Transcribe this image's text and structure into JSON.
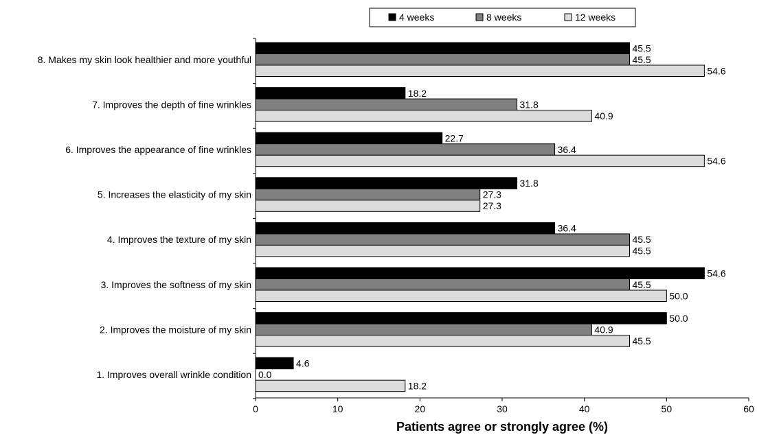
{
  "chart_data": {
    "type": "bar",
    "orientation": "horizontal",
    "categories": [
      "8. Makes my skin look healthier and more youthful",
      "7. Improves the depth of fine wrinkles",
      "6. Improves the appearance of fine wrinkles",
      "5. Increases the elasticity of my skin",
      "4. Improves the texture of my skin",
      "3. Improves the softness of my skin",
      "2. Improves the moisture of my skin",
      "1. Improves overall wrinkle condition"
    ],
    "series": [
      {
        "name": "4 weeks",
        "color": "#000000",
        "values": [
          45.5,
          18.2,
          22.7,
          31.8,
          36.4,
          54.6,
          50.0,
          4.6
        ],
        "labels": [
          "45.5",
          "18.2",
          "22.7",
          "31.8",
          "36.4",
          "54.6",
          "50.0",
          "4.6"
        ]
      },
      {
        "name": "8 weeks",
        "color": "#808080",
        "values": [
          45.5,
          31.8,
          36.4,
          27.3,
          45.5,
          45.5,
          40.9,
          0.0
        ],
        "labels": [
          "45.5",
          "31.8",
          "36.4",
          "27.3",
          "45.5",
          "45.5",
          "40.9",
          "0.0"
        ]
      },
      {
        "name": "12 weeks",
        "color": "#dcdcdc",
        "values": [
          54.6,
          40.9,
          54.6,
          27.3,
          45.5,
          50.0,
          45.5,
          18.2
        ],
        "labels": [
          "54.6",
          "40.9",
          "54.6",
          "27.3",
          "45.5",
          "50.0",
          "45.5",
          "18.2"
        ]
      }
    ],
    "xlabel": "Patients agree or strongly agree (%)",
    "xlim": [
      0,
      60
    ],
    "xticks": [
      "0",
      "10",
      "20",
      "30",
      "40",
      "50",
      "60"
    ],
    "grid": false,
    "legend_position": "top"
  }
}
